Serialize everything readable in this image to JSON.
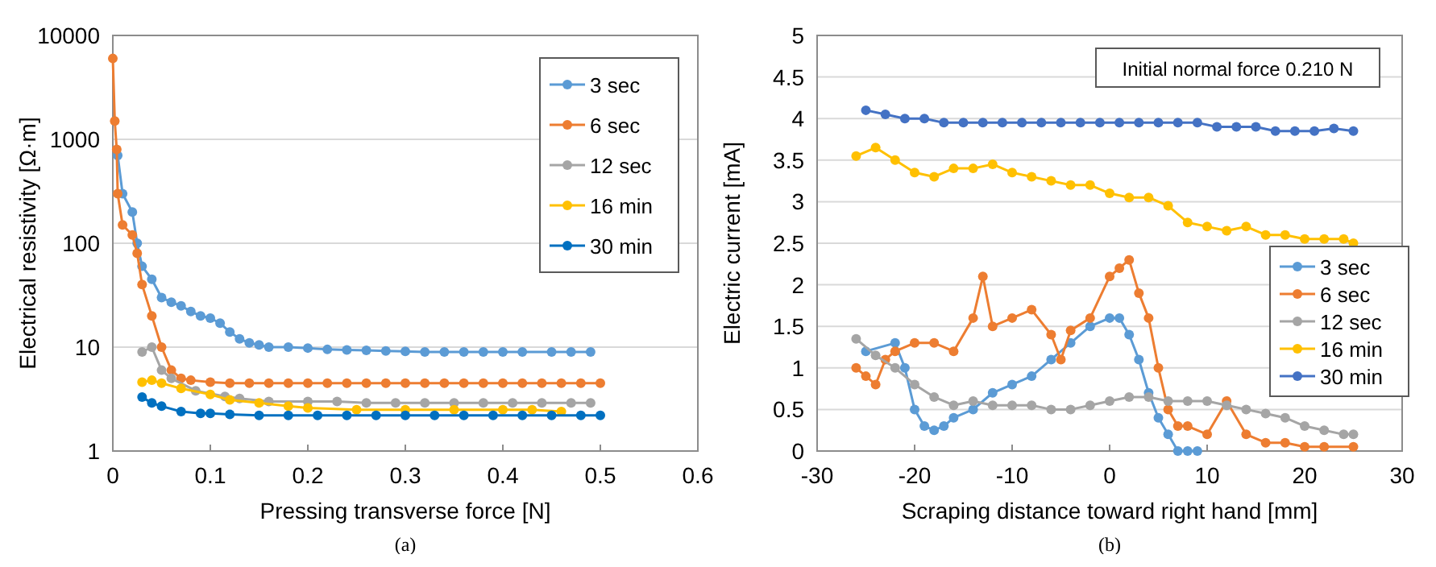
{
  "chart_data": [
    {
      "type": "line",
      "xlabel": "Pressing transverse force    [N]",
      "ylabel": "Electrical resistivity [Ω·m]",
      "log": "y",
      "xlim": [
        0,
        0.6
      ],
      "xticks": [
        0,
        0.1,
        0.2,
        0.3,
        0.4,
        0.5,
        0.6
      ],
      "ylim": [
        1,
        10000
      ],
      "yticks": [
        1,
        10,
        100,
        1000,
        10000
      ],
      "grid": "y",
      "legend": "top right",
      "marker": "circle",
      "line_style": "solid",
      "annotations": [
        "(a)"
      ],
      "series": [
        {
          "name": "3 sec",
          "color": "#5b9bd5",
          "x": [
            0.005,
            0.01,
            0.02,
            0.025,
            0.03,
            0.04,
            0.05,
            0.06,
            0.07,
            0.08,
            0.09,
            0.1,
            0.11,
            0.12,
            0.13,
            0.14,
            0.15,
            0.16,
            0.18,
            0.2,
            0.22,
            0.24,
            0.26,
            0.28,
            0.3,
            0.32,
            0.34,
            0.36,
            0.38,
            0.4,
            0.42,
            0.45,
            0.47,
            0.49
          ],
          "values": [
            700,
            300,
            200,
            100,
            60,
            45,
            30,
            27,
            25,
            22,
            20,
            19,
            17,
            14,
            12,
            11,
            10.5,
            10,
            10,
            9.8,
            9.5,
            9.4,
            9.3,
            9.2,
            9.1,
            9,
            9,
            9,
            9,
            9,
            9,
            9,
            9,
            9
          ]
        },
        {
          "name": "6 sec",
          "color": "#ed7d31",
          "x": [
            0,
            0.002,
            0.004,
            0.005,
            0.01,
            0.02,
            0.025,
            0.03,
            0.04,
            0.05,
            0.06,
            0.07,
            0.08,
            0.1,
            0.12,
            0.14,
            0.16,
            0.18,
            0.2,
            0.22,
            0.24,
            0.26,
            0.28,
            0.3,
            0.32,
            0.34,
            0.36,
            0.38,
            0.4,
            0.42,
            0.44,
            0.46,
            0.48,
            0.5
          ],
          "values": [
            6000,
            1500,
            800,
            300,
            150,
            120,
            80,
            40,
            20,
            10,
            6,
            5,
            4.8,
            4.6,
            4.5,
            4.5,
            4.5,
            4.5,
            4.5,
            4.5,
            4.5,
            4.5,
            4.5,
            4.5,
            4.5,
            4.5,
            4.5,
            4.5,
            4.5,
            4.5,
            4.5,
            4.5,
            4.5,
            4.5
          ]
        },
        {
          "name": "12 sec",
          "color": "#a5a5a5",
          "x": [
            0.03,
            0.04,
            0.05,
            0.06,
            0.085,
            0.115,
            0.13,
            0.16,
            0.2,
            0.23,
            0.26,
            0.29,
            0.32,
            0.35,
            0.38,
            0.41,
            0.44,
            0.47,
            0.49
          ],
          "values": [
            9,
            10,
            6,
            5,
            3.8,
            3.35,
            3.2,
            3,
            3,
            3,
            2.9,
            2.9,
            2.9,
            2.9,
            2.9,
            2.9,
            2.9,
            2.9,
            2.9
          ]
        },
        {
          "name": "16 min",
          "color": "#ffc000",
          "x": [
            0.03,
            0.04,
            0.05,
            0.07,
            0.1,
            0.12,
            0.15,
            0.18,
            0.2,
            0.25,
            0.3,
            0.35,
            0.4,
            0.43,
            0.46
          ],
          "values": [
            4.6,
            4.8,
            4.5,
            4,
            3.5,
            3.1,
            2.9,
            2.7,
            2.6,
            2.5,
            2.5,
            2.5,
            2.5,
            2.5,
            2.4
          ]
        },
        {
          "name": "30 min",
          "color": "#0070c0",
          "x": [
            0.03,
            0.04,
            0.05,
            0.07,
            0.09,
            0.1,
            0.12,
            0.15,
            0.18,
            0.21,
            0.24,
            0.27,
            0.3,
            0.33,
            0.36,
            0.39,
            0.42,
            0.45,
            0.48,
            0.5
          ],
          "values": [
            3.3,
            2.9,
            2.7,
            2.4,
            2.3,
            2.3,
            2.25,
            2.2,
            2.2,
            2.2,
            2.2,
            2.2,
            2.2,
            2.2,
            2.2,
            2.2,
            2.2,
            2.2,
            2.2,
            2.2
          ]
        }
      ]
    },
    {
      "type": "line",
      "xlabel": "Scraping distance toward right hand   [mm]",
      "ylabel": "Electric current [mA]",
      "xlim": [
        -30,
        30
      ],
      "xticks": [
        -30,
        -20,
        -10,
        0,
        10,
        20,
        30
      ],
      "ylim": [
        0,
        5
      ],
      "yticks": [
        0,
        0.5,
        1,
        1.5,
        2,
        2.5,
        3,
        3.5,
        4,
        4.5,
        5
      ],
      "grid": "y",
      "legend": "right",
      "marker": "circle",
      "line_style": "solid",
      "annotations": [
        "Initial normal force 0.210 N",
        "(b)"
      ],
      "series": [
        {
          "name": "3 sec",
          "color": "#5b9bd5",
          "x": [
            -25,
            -22,
            -21,
            -20,
            -19,
            -18,
            -17,
            -16,
            -14,
            -12,
            -10,
            -8,
            -6,
            -4,
            -2,
            0,
            1,
            2,
            3,
            4,
            5,
            6,
            7,
            8,
            9
          ],
          "values": [
            1.2,
            1.3,
            1,
            0.5,
            0.3,
            0.25,
            0.3,
            0.4,
            0.5,
            0.7,
            0.8,
            0.9,
            1.1,
            1.3,
            1.5,
            1.6,
            1.6,
            1.4,
            1.1,
            0.7,
            0.4,
            0.2,
            0,
            0,
            0
          ]
        },
        {
          "name": "6 sec",
          "color": "#ed7d31",
          "x": [
            -26,
            -25,
            -24,
            -23,
            -22,
            -20,
            -18,
            -16,
            -14,
            -13,
            -12,
            -10,
            -8,
            -6,
            -5,
            -4,
            -2,
            0,
            1,
            2,
            3,
            4,
            5,
            6,
            7,
            8,
            10,
            12,
            14,
            16,
            18,
            20,
            22,
            25
          ],
          "values": [
            1,
            0.9,
            0.8,
            1.1,
            1.2,
            1.3,
            1.3,
            1.2,
            1.6,
            2.1,
            1.5,
            1.6,
            1.7,
            1.4,
            1.1,
            1.45,
            1.6,
            2.1,
            2.2,
            2.3,
            1.9,
            1.6,
            1,
            0.5,
            0.3,
            0.3,
            0.2,
            0.6,
            0.2,
            0.1,
            0.1,
            0.05,
            0.05,
            0.05
          ]
        },
        {
          "name": "12 sec",
          "color": "#a5a5a5",
          "x": [
            -26,
            -24,
            -22,
            -20,
            -18,
            -16,
            -14,
            -12,
            -10,
            -8,
            -6,
            -4,
            -2,
            0,
            2,
            4,
            6,
            8,
            10,
            12,
            14,
            16,
            18,
            20,
            22,
            24,
            25
          ],
          "values": [
            1.35,
            1.15,
            1,
            0.8,
            0.65,
            0.55,
            0.6,
            0.55,
            0.55,
            0.55,
            0.5,
            0.5,
            0.55,
            0.6,
            0.65,
            0.65,
            0.6,
            0.6,
            0.6,
            0.55,
            0.5,
            0.45,
            0.4,
            0.3,
            0.25,
            0.2,
            0.2
          ]
        },
        {
          "name": "16 min",
          "color": "#ffc000",
          "x": [
            -26,
            -24,
            -22,
            -20,
            -18,
            -16,
            -14,
            -12,
            -10,
            -8,
            -6,
            -4,
            -2,
            0,
            2,
            4,
            6,
            8,
            10,
            12,
            14,
            16,
            18,
            20,
            22,
            24,
            25
          ],
          "values": [
            3.55,
            3.65,
            3.5,
            3.35,
            3.3,
            3.4,
            3.4,
            3.45,
            3.35,
            3.3,
            3.25,
            3.2,
            3.2,
            3.1,
            3.05,
            3.05,
            2.95,
            2.75,
            2.7,
            2.65,
            2.7,
            2.6,
            2.6,
            2.55,
            2.55,
            2.55,
            2.5
          ]
        },
        {
          "name": "30 min",
          "color": "#4472c4",
          "x": [
            -25,
            -23,
            -21,
            -19,
            -17,
            -15,
            -13,
            -11,
            -9,
            -7,
            -5,
            -3,
            -1,
            1,
            3,
            5,
            7,
            9,
            11,
            13,
            15,
            17,
            19,
            21,
            23,
            25
          ],
          "values": [
            4.1,
            4.05,
            4,
            4,
            3.95,
            3.95,
            3.95,
            3.95,
            3.95,
            3.95,
            3.95,
            3.95,
            3.95,
            3.95,
            3.95,
            3.95,
            3.95,
            3.95,
            3.9,
            3.9,
            3.9,
            3.85,
            3.85,
            3.85,
            3.88,
            3.85
          ]
        }
      ]
    }
  ]
}
